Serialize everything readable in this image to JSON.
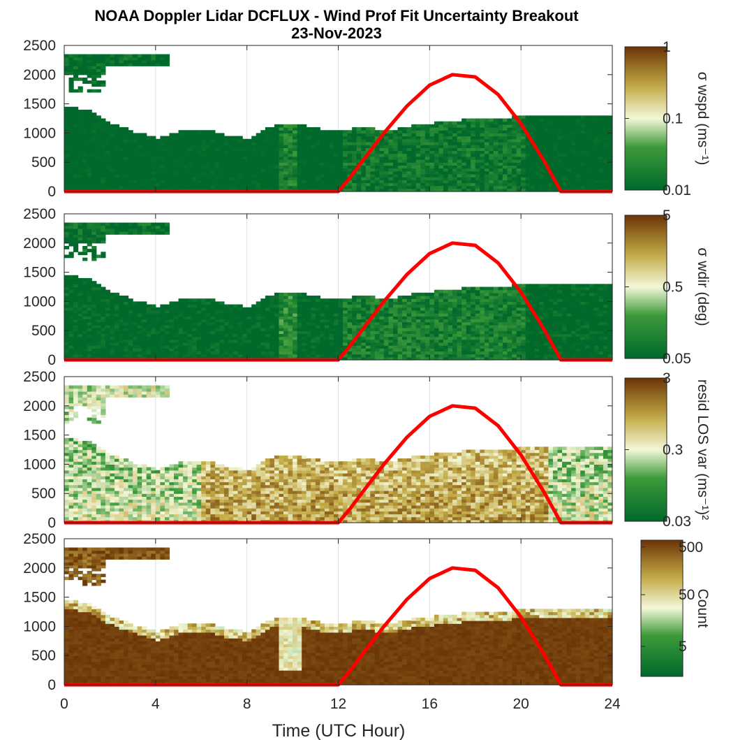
{
  "figure": {
    "title_line1": "NOAA Doppler Lidar DCFLUX - Wind Prof Fit Uncertainty Breakout",
    "title_line2": "23-Nov-2023",
    "xlabel": "Time (UTC Hour)",
    "x_ticks": [
      "0",
      "4",
      "8",
      "12",
      "16",
      "20",
      "24"
    ]
  },
  "colors": {
    "low": "#00692b",
    "mid": "#f3f7d8",
    "high": "#6b3506",
    "sun_curve": "#ff0000",
    "grid": "#e0e0e0",
    "axis": "#262626"
  },
  "chart_data": [
    {
      "type": "heatmap",
      "name": "wspd-uncertainty",
      "x_range": [
        0,
        24
      ],
      "y_range": [
        0,
        2500
      ],
      "y_ticks": [
        "0",
        "500",
        "1000",
        "1500",
        "2000",
        "2500"
      ],
      "colorbar": {
        "scale": "log",
        "ticks": [
          "0.01",
          "0.1",
          "1"
        ],
        "range": [
          0.01,
          1
        ],
        "label": "σ wspd (ms⁻¹)"
      },
      "bias": -0.3
    },
    {
      "type": "heatmap",
      "name": "wdir-uncertainty",
      "x_range": [
        0,
        24
      ],
      "y_range": [
        0,
        2500
      ],
      "y_ticks": [
        "0",
        "500",
        "1000",
        "1500",
        "2000",
        "2500"
      ],
      "colorbar": {
        "scale": "log",
        "ticks": [
          "0.05",
          "0.5",
          "5"
        ],
        "range": [
          0.05,
          5
        ],
        "label": "σ wdir (deg)"
      },
      "bias": -0.25
    },
    {
      "type": "heatmap",
      "name": "resid-los-variance",
      "x_range": [
        0,
        24
      ],
      "y_range": [
        0,
        2500
      ],
      "y_ticks": [
        "0",
        "500",
        "1000",
        "1500",
        "2000",
        "2500"
      ],
      "colorbar": {
        "scale": "log",
        "ticks": [
          "0.03",
          "0.3",
          "3"
        ],
        "range": [
          0.03,
          3
        ],
        "label": "resid LOS var (ms⁻¹)²"
      },
      "bias": 0.05
    },
    {
      "type": "heatmap",
      "name": "count",
      "x_range": [
        0,
        24
      ],
      "y_range": [
        0,
        2500
      ],
      "y_ticks": [
        "0",
        "500",
        "1000",
        "1500",
        "2000",
        "2500"
      ],
      "colorbar": {
        "scale": "log",
        "ticks": [
          "5",
          "50",
          "500"
        ],
        "label": "Count"
      },
      "bias": 0.6
    }
  ],
  "mixing_height_overlay": {
    "type": "line",
    "x": [
      0,
      12,
      12.5,
      13,
      14,
      15,
      16,
      17,
      18,
      19,
      20,
      21,
      21.75,
      24
    ],
    "y": [
      0,
      0,
      230,
      490,
      1000,
      1460,
      1820,
      2000,
      1960,
      1660,
      1160,
      530,
      0,
      0
    ]
  }
}
